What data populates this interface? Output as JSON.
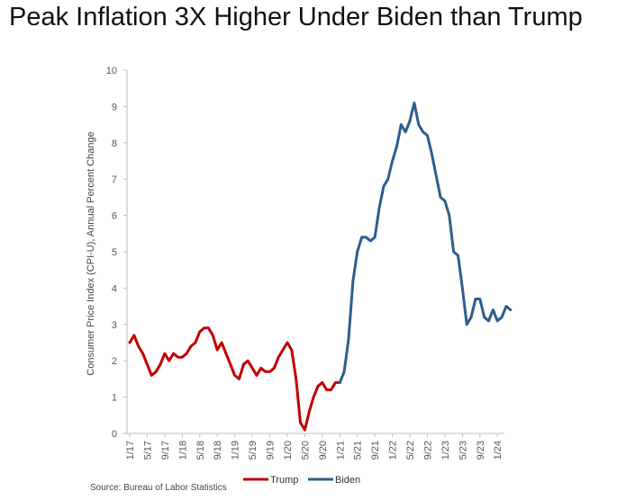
{
  "title": "Peak Inflation 3X Higher Under Biden than Trump",
  "source": "Source: Bureau of Labor Statistics",
  "chart_data": {
    "type": "line",
    "title": "Peak Inflation 3X Higher Under Biden than Trump",
    "xlabel": "",
    "ylabel": "Consumer Price Index (CPI-U), Annual Percent Change",
    "ylim": [
      0,
      10
    ],
    "yticks": [
      "0",
      "1",
      "2",
      "3",
      "4",
      "5",
      "6",
      "7",
      "8",
      "9",
      "10"
    ],
    "xticks": [
      "1/17",
      "5/17",
      "9/17",
      "1/18",
      "5/18",
      "9/18",
      "1/19",
      "5/19",
      "9/19",
      "1/20",
      "5/20",
      "9/20",
      "1/21",
      "5/21",
      "9/21",
      "1/22",
      "5/22",
      "9/22",
      "1/23",
      "5/23",
      "9/23",
      "1/24"
    ],
    "x_start": "1/17",
    "grid": false,
    "legend": "bottom-center",
    "series": [
      {
        "name": "Trump",
        "color": "#c00000",
        "start_index": 0,
        "values": [
          2.5,
          2.7,
          2.4,
          2.2,
          1.9,
          1.6,
          1.7,
          1.9,
          2.2,
          2.0,
          2.2,
          2.1,
          2.1,
          2.2,
          2.4,
          2.5,
          2.8,
          2.9,
          2.9,
          2.7,
          2.3,
          2.5,
          2.2,
          1.9,
          1.6,
          1.5,
          1.9,
          2.0,
          1.8,
          1.6,
          1.8,
          1.7,
          1.7,
          1.8,
          2.1,
          2.3,
          2.5,
          2.3,
          1.5,
          0.3,
          0.1,
          0.6,
          1.0,
          1.3,
          1.4,
          1.2,
          1.2,
          1.4,
          1.4
        ]
      },
      {
        "name": "Biden",
        "color": "#2e5e8e",
        "start_index": 48,
        "values": [
          1.4,
          1.7,
          2.6,
          4.2,
          5.0,
          5.4,
          5.4,
          5.3,
          5.4,
          6.2,
          6.8,
          7.0,
          7.5,
          7.9,
          8.5,
          8.3,
          8.6,
          9.1,
          8.5,
          8.3,
          8.2,
          7.7,
          7.1,
          6.5,
          6.4,
          6.0,
          5.0,
          4.9,
          4.0,
          3.0,
          3.2,
          3.7,
          3.7,
          3.2,
          3.1,
          3.4,
          3.1,
          3.2,
          3.5,
          3.4
        ]
      }
    ]
  }
}
